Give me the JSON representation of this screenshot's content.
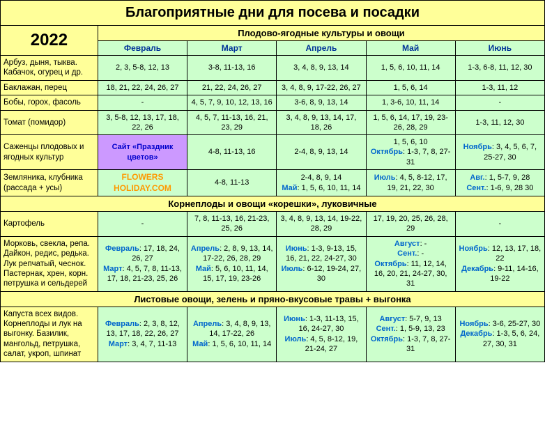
{
  "title": "Благоприятные дни для посева и посадки",
  "year": "2022",
  "section1": "Плодово-ягодные культуры и овощи",
  "section2": "Корнеплоды и овощи «корешки», луковичные",
  "section3": "Листовые овощи, зелень и пряно-вкусовые травы + выгонка",
  "months": [
    "Февраль",
    "Март",
    "Апрель",
    "Май",
    "Июнь"
  ],
  "r1": {
    "crop": "Арбуз, дыня, тыква. Кабачок, огурец и др.",
    "c1": "2, 3, 5-8, 12, 13",
    "c2": "3-8, 11-13, 16",
    "c3": "3, 4, 8, 9, 13, 14",
    "c4": "1, 5, 6, 10, 11, 14",
    "c5": "1-3, 6-8, 11, 12, 30"
  },
  "r2": {
    "crop": "Баклажан, перец",
    "c1": "18, 21, 22, 24, 26, 27",
    "c2": "21, 22, 24, 26, 27",
    "c3": "3, 4, 8, 9, 17-22, 26, 27",
    "c4": "1, 5, 6, 14",
    "c5": "1-3, 11, 12"
  },
  "r3": {
    "crop": "Бобы, горох, фасоль",
    "c1": "-",
    "c2": "4, 5, 7, 9, 10, 12, 13, 16",
    "c3": "3-6, 8, 9, 13, 14",
    "c4": "1, 3-6, 10, 11, 14",
    "c5": "-"
  },
  "r4": {
    "crop": "Томат (помидор)",
    "c1": "3, 5-8, 12, 13, 17, 18, 22, 26",
    "c2": "4, 5, 7, 11-13, 16, 21, 23, 29",
    "c3": "3, 4, 8, 9, 13, 14, 17, 18, 26",
    "c4": "1, 5, 6, 14, 17, 19,  23-26, 28, 29",
    "c5": "1-3, 11, 12, 30"
  },
  "r5": {
    "crop": "Саженцы плодовых и ягодных культур",
    "promo": "Сайт «Праздник цветов»",
    "c2": "4-8, 11-13, 16",
    "c3": "2-4, 8, 9, 13, 14",
    "c4a": "1, 5, 6, 10",
    "c4b_label": "Октябрь",
    "c4b": ": 1-3, 7, 8, 27-31",
    "c5_label": "Ноябрь",
    "c5": ": 3, 4, 5, 6, 7, 25-27, 30"
  },
  "r6": {
    "crop": "Земляника, клубника (рассада + усы)",
    "promo": "FLOWERS HOLIDAY.COM",
    "c2": "4-8, 11-13",
    "c3a": "2-4, 8, 9, 14",
    "c3b_label": "Май",
    "c3b": ": 1, 5, 6, 10, 11, 14",
    "c4_label": "Июль",
    "c4": ": 4, 5, 8-12, 17, 19, 21, 22, 30",
    "c5a_label": "Авг.",
    "c5a": ": 1, 5-7, 9, 28",
    "c5b_label": "Сент.",
    "c5b": ": 1-6, 9, 28  30"
  },
  "r7": {
    "crop": "Картофель",
    "c1": "-",
    "c2": "7, 8, 11-13, 16, 21-23, 25, 26",
    "c3": "3, 4, 8, 9, 13, 14, 19-22, 28, 29",
    "c4": "17, 19, 20, 25, 26, 28, 29",
    "c5": "-"
  },
  "r8": {
    "crop": "Морковь, свекла, репа. Дайкон, редис, редька. Лук репчатый, чеснок. Пастернак, хрен, корн. петрушка и сельдерей",
    "c1a_label": "Февраль",
    "c1a": ": 17, 18, 24, 26, 27",
    "c1b_label": "Март",
    "c1b": ":\n4, 5, 7, 8, 11-13, 17, 18,  21-23, 25, 26",
    "c2a_label": "Апрель",
    "c2a": ":\n2, 8, 9, 13, 14, 17-22, 26, 28, 29",
    "c2b_label": "Май",
    "c2b": ":\n5, 6, 10, 11, 14, 15, 17, 19, 23-26",
    "c3a_label": "Июнь",
    "c3a": ": 1-3, 9-13, 15, 16, 21, 22, 24-27, 30",
    "c3b_label": "Июль",
    "c3b": ": 6-12, 19-24, 27, 30",
    "c4a_label": "Август",
    "c4a": ": -",
    "c4b_label": "Сент.",
    "c4b": ": -",
    "c4c_label": "Октябрь",
    "c4c": ":\n11, 12, 14, 16, 20, 21, 24-27, 30, 31",
    "c5a_label": "Ноябрь",
    "c5a": ":\n12, 13, 17, 18, 22",
    "c5b_label": "Декабрь",
    "c5b": ":\n9-11, 14-16, 19-22"
  },
  "r9": {
    "crop": "Капуста всех видов. Корнеплоды и лук на выгонку. Базилик, мангольд, петрушка, салат, укроп, шпинат",
    "c1a_label": "Февраль",
    "c1a": ": 2, 3, 8, 12, 13, 17, 18, 22, 26, 27",
    "c1b_label": "Март",
    "c1b": ":\n3, 4, 7, 11-13",
    "c2a_label": "Апрель",
    "c2a": ": 3, 4, 8, 9, 13, 14, 17-22, 26",
    "c2b_label": "Май",
    "c2b": ": 1, 5, 6, 10, 11, 14",
    "c3a_label": "Июнь",
    "c3a": ": 1-3, 11-13, 15, 16, 24-27, 30",
    "c3b_label": "Июль",
    "c3b": ":\n4, 5, 8-12, 19, 21-24, 27",
    "c4a_label": "Август",
    "c4a": ":\n5-7, 9, 13",
    "c4b_label": "Сент.",
    "c4b": ": 1, 5-9, 13, 23",
    "c4c_label": "Октябрь",
    "c4c": ": 1-3, 7, 8, 27-31",
    "c5a_label": "Ноябрь",
    "c5a": ":\n3-6, 25-27, 30",
    "c5b_label": "Декабрь",
    "c5b": ":\n1-3, 5, 6, 24, 27, 30, 31"
  }
}
